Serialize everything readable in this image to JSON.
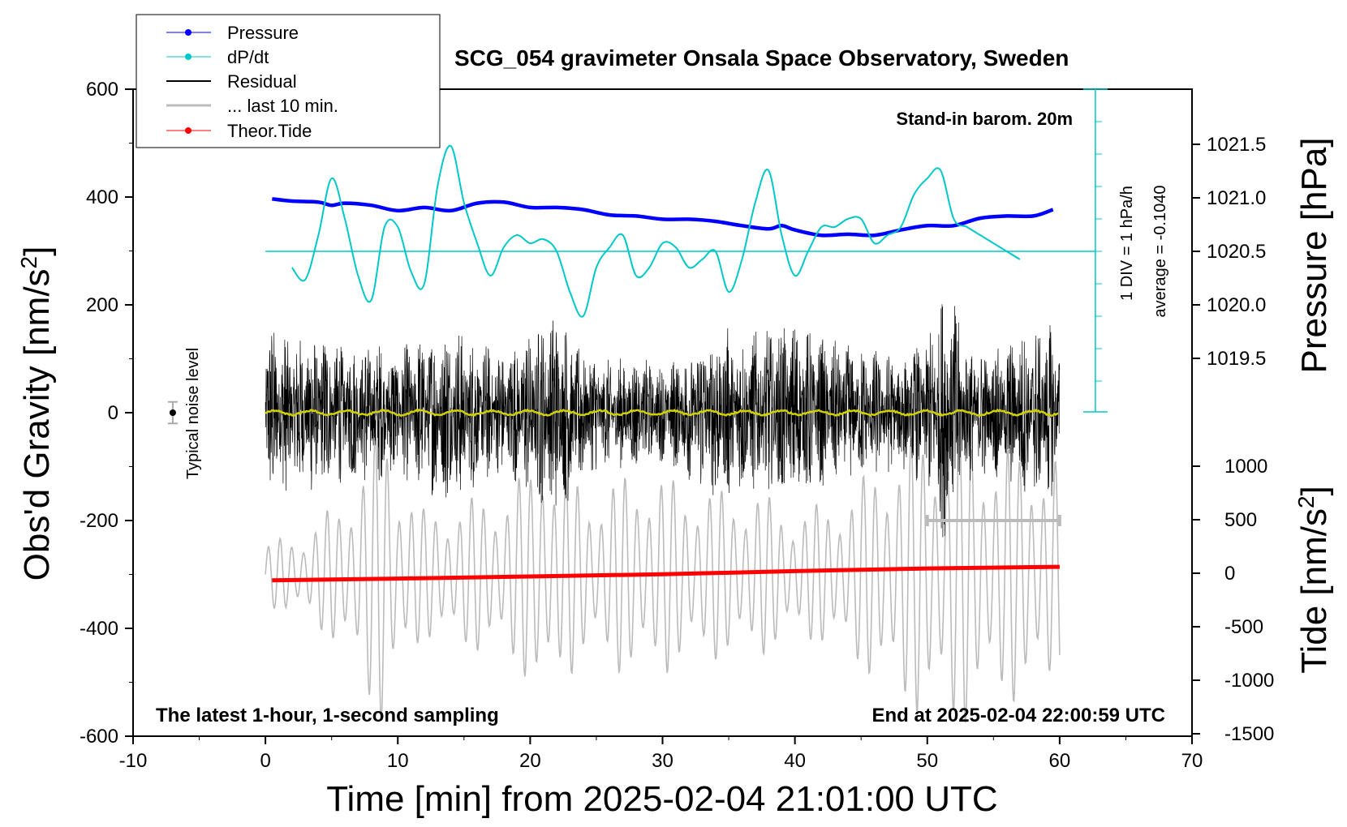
{
  "chart_data": {
    "type": "line",
    "title": "SCG_054 gravimeter Onsala Space Observatory, Sweden",
    "xlabel": "Time [min] from 2025-02-04 21:01:00 UTC",
    "ylabel_left": "Obs'd Gravity [nm/s",
    "ylabel_left_sup": "2",
    "ylabel_left_close": "]",
    "ylabel_right_pressure": "Pressure [hPa]",
    "ylabel_right_tide": "Tide [nm/s",
    "ylabel_right_tide_sup": "2",
    "ylabel_right_tide_close": "]",
    "xlim": [
      -10,
      70
    ],
    "ylim_left": [
      -600,
      600
    ],
    "x_ticks": [
      "-10",
      "0",
      "10",
      "20",
      "30",
      "40",
      "50",
      "60",
      "70"
    ],
    "x_tick_values": [
      -10,
      0,
      10,
      20,
      30,
      40,
      50,
      60,
      70
    ],
    "y_ticks_left": [
      "600",
      "400",
      "200",
      "0",
      "-200",
      "-400",
      "-600"
    ],
    "y_tick_values_left": [
      600,
      400,
      200,
      0,
      -200,
      -400,
      -600
    ],
    "pressure_ticks": [
      "1021.5",
      "1021.0",
      "1020.5",
      "1020.0",
      "1019.5"
    ],
    "pressure_tick_values": [
      1021.5,
      1021.0,
      1020.5,
      1020.0,
      1019.5
    ],
    "tide_ticks": [
      "1000",
      "500",
      "0",
      "-500",
      "-1000",
      "-1500"
    ],
    "tide_tick_values": [
      1000,
      500,
      0,
      -500,
      -1000,
      -1500
    ],
    "annotations": {
      "stand_in": "Stand-in barom. 20m",
      "latest": "The latest 1-hour, 1-second sampling",
      "end_at": "End at 2025-02-04 22:00:59 UTC",
      "noise_level": "Typical noise level",
      "div_note": "1 DIV = 1 hPa/h",
      "average_note": "average = -0.1040"
    },
    "legend": [
      {
        "name": "Pressure",
        "color": "#0000ff",
        "marker": true
      },
      {
        "name": "dP/dt",
        "color": "#00c8c8",
        "marker": true
      },
      {
        "name": "Residual",
        "color": "#000000",
        "marker": false
      },
      {
        "name": "... last 10 min.",
        "color": "#bbbbbb",
        "marker": false
      },
      {
        "name": "Theor.Tide",
        "color": "#ff0000",
        "marker": true
      }
    ],
    "series": [
      {
        "name": "Pressure",
        "axis": "pressure_hPa",
        "color": "#0000ff",
        "x": [
          0.5,
          2,
          4,
          5,
          6,
          8,
          10,
          12,
          14,
          16,
          18,
          20,
          22,
          24,
          26,
          28,
          30,
          32,
          34,
          36,
          38,
          39,
          40,
          42,
          44,
          46,
          48,
          50,
          52,
          54,
          56,
          58,
          59.5
        ],
        "y": [
          1020.99,
          1020.97,
          1020.96,
          1020.93,
          1020.95,
          1020.93,
          1020.88,
          1020.91,
          1020.88,
          1020.95,
          1020.96,
          1020.91,
          1020.91,
          1020.89,
          1020.84,
          1020.83,
          1020.8,
          1020.8,
          1020.78,
          1020.74,
          1020.71,
          1020.74,
          1020.7,
          1020.65,
          1020.66,
          1020.65,
          1020.7,
          1020.74,
          1020.74,
          1020.81,
          1020.83,
          1020.83,
          1020.89
        ]
      },
      {
        "name": "dP/dt",
        "axis": "dpdt_div",
        "color": "#00c8c8",
        "x": [
          2,
          3,
          4,
          5,
          6,
          7,
          8,
          9,
          10,
          11,
          12,
          13,
          14,
          15,
          16,
          17,
          18,
          19,
          20,
          21,
          22,
          23,
          24,
          25,
          26,
          27,
          28,
          29,
          30,
          31,
          32,
          33,
          34,
          35,
          36,
          37,
          38,
          39,
          40,
          41,
          42,
          43,
          44,
          45,
          46,
          47,
          48,
          49,
          50,
          51,
          52,
          53,
          54,
          55,
          56,
          57
        ],
        "y": [
          -0.2,
          -0.35,
          0.2,
          0.9,
          0.4,
          -0.3,
          -0.6,
          0.3,
          0.3,
          -0.25,
          -0.4,
          0.8,
          1.3,
          0.6,
          0.1,
          -0.3,
          0.05,
          0.2,
          0.1,
          0.15,
          0.0,
          -0.5,
          -0.8,
          -0.2,
          0.05,
          0.2,
          -0.3,
          -0.2,
          0.1,
          0.05,
          -0.2,
          -0.1,
          0.0,
          -0.5,
          -0.1,
          0.6,
          1.0,
          0.2,
          -0.3,
          0.0,
          0.3,
          0.3,
          0.4,
          0.4,
          0.1,
          0.2,
          0.3,
          0.7,
          0.9,
          1.0,
          0.4,
          0.3,
          0.2,
          0.1,
          0.0,
          -0.1
        ]
      },
      {
        "name": "Theor.Tide",
        "axis": "tide_nm_s2",
        "color": "#ff0000",
        "x": [
          0.5,
          10,
          20,
          30,
          40,
          50,
          60
        ],
        "y": [
          -66,
          -50,
          -30,
          -10,
          20,
          45,
          60
        ]
      },
      {
        "name": "Residual",
        "axis": "gravity_nm_s2",
        "color": "#000000",
        "x_range": [
          0,
          60
        ],
        "envelope_minutes": [
          0,
          2,
          4,
          6,
          8,
          10,
          12,
          14,
          16,
          18,
          20,
          22,
          24,
          26,
          28,
          30,
          32,
          34,
          36,
          38,
          40,
          42,
          44,
          46,
          48,
          50,
          51.5,
          53,
          55,
          57,
          59,
          60
        ],
        "envelope_amplitude": [
          180,
          140,
          160,
          130,
          140,
          120,
          150,
          170,
          140,
          120,
          160,
          200,
          130,
          100,
          110,
          90,
          130,
          170,
          150,
          160,
          180,
          140,
          130,
          120,
          110,
          140,
          260,
          130,
          120,
          150,
          170,
          150
        ]
      },
      {
        "name": "... last 10 min.",
        "axis": "gravity_nm_s2",
        "color": "#bbbbbb",
        "x_range": [
          0,
          60
        ],
        "offset": -300,
        "envelope_minutes": [
          0,
          3,
          6,
          8,
          9,
          10,
          12,
          15,
          18,
          20,
          21,
          22,
          25,
          28,
          31,
          34,
          37,
          40,
          43,
          46,
          48,
          50,
          52,
          55,
          58,
          60
        ],
        "envelope_amplitude": [
          60,
          80,
          150,
          250,
          300,
          200,
          120,
          140,
          160,
          200,
          280,
          200,
          160,
          200,
          180,
          160,
          160,
          120,
          140,
          200,
          250,
          270,
          300,
          240,
          240,
          220
        ]
      }
    ],
    "noise_bar": {
      "x": -7,
      "y": 0,
      "half_range": 20
    },
    "pressure_reference_line": 1020.5,
    "last10_bar": {
      "x": [
        50,
        60
      ],
      "y": -200
    }
  }
}
